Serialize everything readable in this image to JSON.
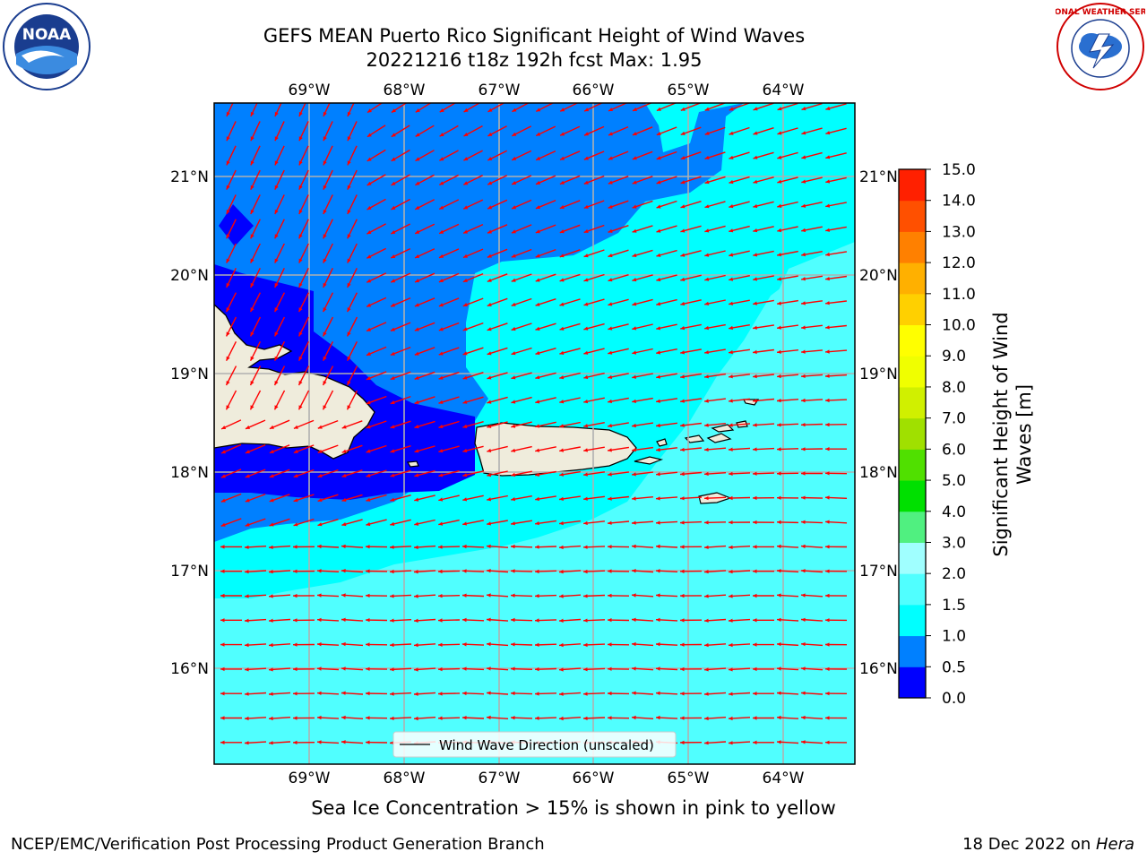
{
  "title": {
    "line1": "GEFS MEAN Puerto Rico Significant Height of Wind Waves",
    "line2": "20221216 t18z 192h fcst   Max: 1.95"
  },
  "map": {
    "lon_labels": [
      "69°W",
      "68°W",
      "67°W",
      "66°W",
      "65°W",
      "64°W"
    ],
    "lat_labels": [
      "21°N",
      "20°N",
      "19°N",
      "18°N",
      "17°N",
      "16°N"
    ],
    "legend_label": "Wind Wave Direction (unscaled)",
    "arrow_color": "#ff0000"
  },
  "colorbar": {
    "title": "Significant Height of Wind Waves [m]",
    "title_line1": "Significant Height of Wind",
    "title_line2": "Waves [m]",
    "levels": [
      "0.0",
      "0.5",
      "1.0",
      "1.5",
      "2.0",
      "3.0",
      "4.0",
      "5.0",
      "6.0",
      "7.0",
      "8.0",
      "9.0",
      "10.0",
      "11.0",
      "12.0",
      "13.0",
      "14.0",
      "15.0"
    ],
    "colors": [
      "#0000ff",
      "#0080ff",
      "#00ffff",
      "#50ffff",
      "#a0ffff",
      "#50f080",
      "#00e000",
      "#50e000",
      "#a0e000",
      "#d0f000",
      "#f0ff00",
      "#ffff00",
      "#ffd000",
      "#ffb000",
      "#ff8000",
      "#ff5000",
      "#ff2000"
    ]
  },
  "caption": "Sea Ice Concentration > 15% is shown in pink to yellow",
  "credit": "NCEP/EMC/Verification Post Processing Product Generation Branch",
  "datestamp": {
    "date": "18 Dec 2022 on ",
    "host": "Hera"
  },
  "logos": {
    "left": "NOAA",
    "right": "NATIONAL WEATHER SERVICE"
  }
}
